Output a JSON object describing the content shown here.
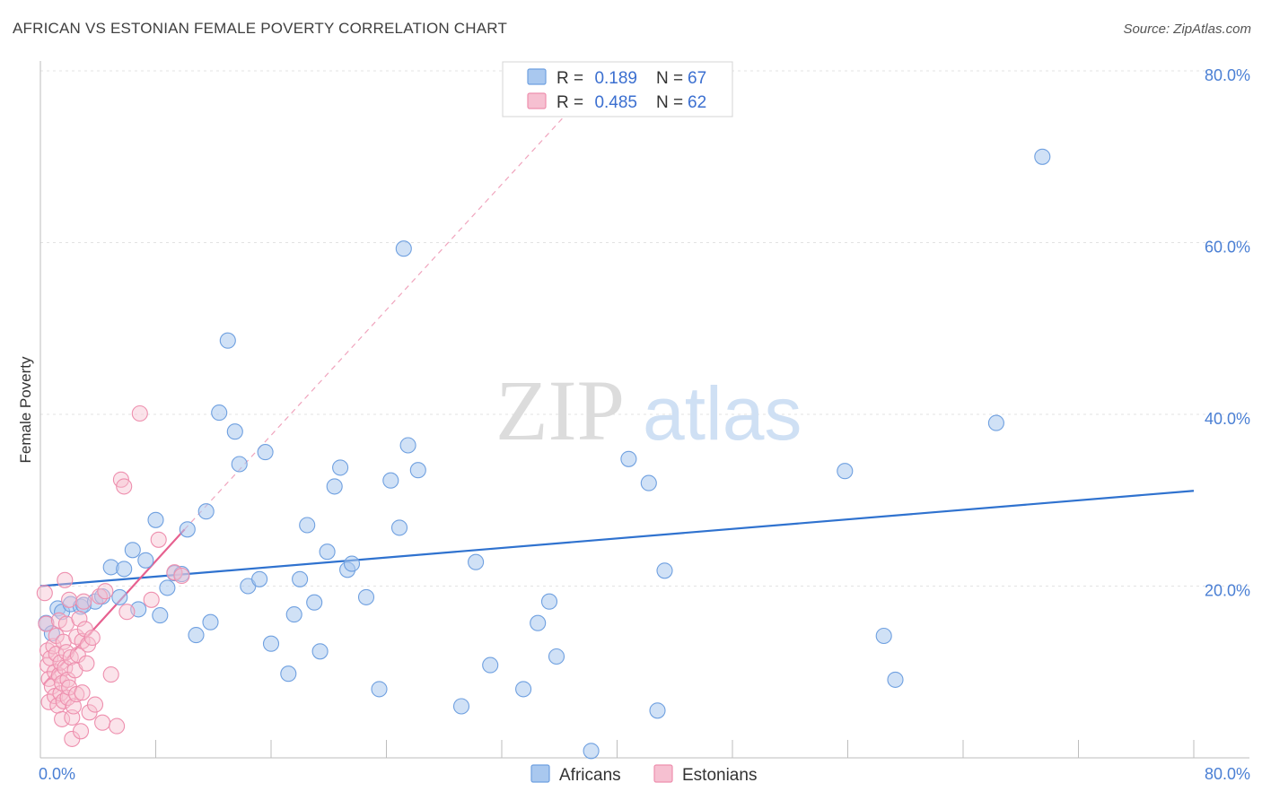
{
  "title": "AFRICAN VS ESTONIAN FEMALE POVERTY CORRELATION CHART",
  "source": "Source: ZipAtlas.com",
  "watermark": {
    "zip": "ZIP",
    "atlas": "atlas"
  },
  "colors": {
    "africans_fill": "#a9c8ef",
    "africans_stroke": "#6fa0e0",
    "africans_line": "#2f72cf",
    "estonians_fill": "#f6c0d1",
    "estonians_stroke": "#ee8fae",
    "estonians_line": "#e6608f",
    "grid": "#e3e3e3",
    "tick_text": "#4a7fd4"
  },
  "legend": {
    "rows": [
      {
        "r_label": "R =",
        "r_value": "0.189",
        "n_label": "N =",
        "n_value": "67"
      },
      {
        "r_label": "R =",
        "r_value": "0.485",
        "n_label": "N =",
        "n_value": "62"
      }
    ]
  },
  "chart_data": {
    "type": "scatter",
    "title": "AFRICAN VS ESTONIAN FEMALE POVERTY CORRELATION CHART",
    "xlabel": "",
    "ylabel": "Female Poverty",
    "xlim": [
      0,
      84
    ],
    "ylim": [
      0,
      82
    ],
    "x_tick_labels": [
      "0.0%",
      "80.0%"
    ],
    "y_ticks": [
      20,
      40,
      60,
      80
    ],
    "y_tick_labels": [
      "20.0%",
      "40.0%",
      "60.0%",
      "80.0%"
    ],
    "grid": true,
    "legend_position": "top-center",
    "series": [
      {
        "name": "Africans",
        "r": 0.189,
        "n": 67,
        "trend": {
          "x": [
            0,
            80
          ],
          "y": [
            20.0,
            31.1
          ],
          "style": "solid"
        },
        "points": [
          [
            0.4,
            15.7
          ],
          [
            0.8,
            14.5
          ],
          [
            1.2,
            17.4
          ],
          [
            1.5,
            17.0
          ],
          [
            2.1,
            17.9
          ],
          [
            2.8,
            17.6
          ],
          [
            3.0,
            17.8
          ],
          [
            3.8,
            18.2
          ],
          [
            4.3,
            18.8
          ],
          [
            4.9,
            22.2
          ],
          [
            5.5,
            18.7
          ],
          [
            5.8,
            22.0
          ],
          [
            6.4,
            24.2
          ],
          [
            6.8,
            17.3
          ],
          [
            7.3,
            23.0
          ],
          [
            8.0,
            27.7
          ],
          [
            8.3,
            16.6
          ],
          [
            8.8,
            19.8
          ],
          [
            9.3,
            21.5
          ],
          [
            9.8,
            21.4
          ],
          [
            10.2,
            26.6
          ],
          [
            10.8,
            14.3
          ],
          [
            11.5,
            28.7
          ],
          [
            11.8,
            15.8
          ],
          [
            12.4,
            40.2
          ],
          [
            13.0,
            48.6
          ],
          [
            13.5,
            38.0
          ],
          [
            13.8,
            34.2
          ],
          [
            14.4,
            20.0
          ],
          [
            15.2,
            20.8
          ],
          [
            15.6,
            35.6
          ],
          [
            16.0,
            13.3
          ],
          [
            17.2,
            9.8
          ],
          [
            17.6,
            16.7
          ],
          [
            18.0,
            20.8
          ],
          [
            18.5,
            27.1
          ],
          [
            19.0,
            18.1
          ],
          [
            19.4,
            12.4
          ],
          [
            19.9,
            24.0
          ],
          [
            20.4,
            31.6
          ],
          [
            20.8,
            33.8
          ],
          [
            21.3,
            21.9
          ],
          [
            21.6,
            22.6
          ],
          [
            22.6,
            18.7
          ],
          [
            23.5,
            8.0
          ],
          [
            24.3,
            32.3
          ],
          [
            24.9,
            26.8
          ],
          [
            25.2,
            59.3
          ],
          [
            25.5,
            36.4
          ],
          [
            26.2,
            33.5
          ],
          [
            29.2,
            6.0
          ],
          [
            30.2,
            22.8
          ],
          [
            31.2,
            10.8
          ],
          [
            33.5,
            8.0
          ],
          [
            34.5,
            15.7
          ],
          [
            35.3,
            18.2
          ],
          [
            35.8,
            11.8
          ],
          [
            38.2,
            0.8
          ],
          [
            40.8,
            34.8
          ],
          [
            42.2,
            32.0
          ],
          [
            42.8,
            5.5
          ],
          [
            43.3,
            21.8
          ],
          [
            55.8,
            33.4
          ],
          [
            58.5,
            14.2
          ],
          [
            59.3,
            9.1
          ],
          [
            66.3,
            39.0
          ],
          [
            69.5,
            70.0
          ]
        ]
      },
      {
        "name": "Estonians",
        "r": 0.485,
        "n": 62,
        "trend": {
          "x": [
            0.2,
            10.0
          ],
          "y": [
            8.5,
            26.6
          ],
          "style": "solid",
          "extension": {
            "x": [
              10.0,
              36.5
            ],
            "y": [
              26.6,
              75.0
            ],
            "style": "dashed"
          }
        },
        "points": [
          [
            0.3,
            19.2
          ],
          [
            0.4,
            15.6
          ],
          [
            0.5,
            12.5
          ],
          [
            0.5,
            10.8
          ],
          [
            0.6,
            9.2
          ],
          [
            0.6,
            6.5
          ],
          [
            0.7,
            11.6
          ],
          [
            0.8,
            8.3
          ],
          [
            0.9,
            13.0
          ],
          [
            1.0,
            10.0
          ],
          [
            1.0,
            7.2
          ],
          [
            1.1,
            14.2
          ],
          [
            1.1,
            12.1
          ],
          [
            1.2,
            6.1
          ],
          [
            1.3,
            9.6
          ],
          [
            1.3,
            16.0
          ],
          [
            1.4,
            11.1
          ],
          [
            1.4,
            7.5
          ],
          [
            1.5,
            8.7
          ],
          [
            1.5,
            4.5
          ],
          [
            1.6,
            13.5
          ],
          [
            1.6,
            6.6
          ],
          [
            1.7,
            10.5
          ],
          [
            1.7,
            20.7
          ],
          [
            1.8,
            12.3
          ],
          [
            1.8,
            15.6
          ],
          [
            1.9,
            9.1
          ],
          [
            1.9,
            7.0
          ],
          [
            2.0,
            8.2
          ],
          [
            2.0,
            18.4
          ],
          [
            2.1,
            11.7
          ],
          [
            2.2,
            4.7
          ],
          [
            2.2,
            2.2
          ],
          [
            2.3,
            6.0
          ],
          [
            2.4,
            10.2
          ],
          [
            2.5,
            14.1
          ],
          [
            2.5,
            7.4
          ],
          [
            2.6,
            12.0
          ],
          [
            2.7,
            16.2
          ],
          [
            2.8,
            3.1
          ],
          [
            2.9,
            13.6
          ],
          [
            2.9,
            7.6
          ],
          [
            3.0,
            18.2
          ],
          [
            3.1,
            15.0
          ],
          [
            3.2,
            11.0
          ],
          [
            3.3,
            13.2
          ],
          [
            3.4,
            5.3
          ],
          [
            3.6,
            14.0
          ],
          [
            3.8,
            6.2
          ],
          [
            4.1,
            18.8
          ],
          [
            4.3,
            4.1
          ],
          [
            4.5,
            19.4
          ],
          [
            4.9,
            9.7
          ],
          [
            5.3,
            3.7
          ],
          [
            5.6,
            32.4
          ],
          [
            5.8,
            31.6
          ],
          [
            6.0,
            17.0
          ],
          [
            6.9,
            40.1
          ],
          [
            7.7,
            18.4
          ],
          [
            8.2,
            25.4
          ],
          [
            9.3,
            21.6
          ],
          [
            9.8,
            21.2
          ]
        ]
      }
    ]
  },
  "bottom_legend": [
    {
      "label": "Africans"
    },
    {
      "label": "Estonians"
    }
  ]
}
